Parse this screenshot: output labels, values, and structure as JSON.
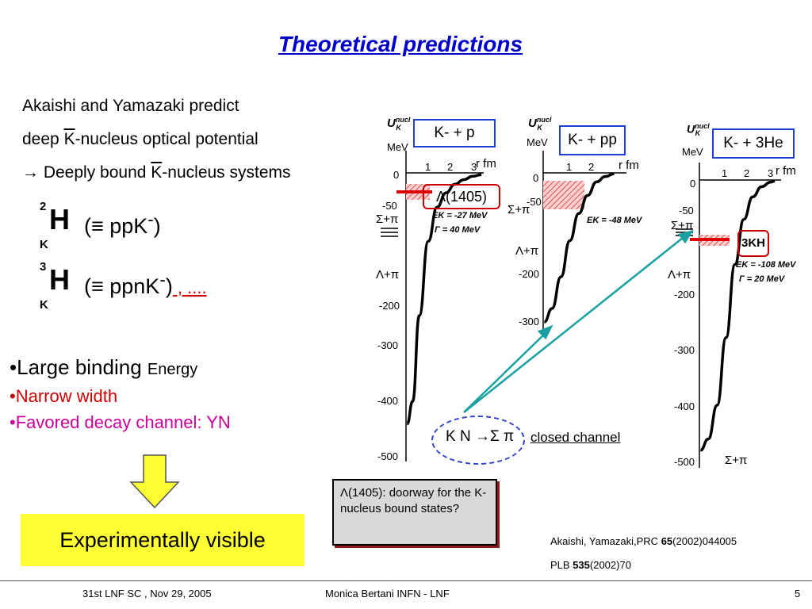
{
  "title": "Theoretical predictions",
  "intro": {
    "line1": "Akaishi and Yamazaki predict",
    "line2_pre": "deep ",
    "line2_bar": "K",
    "line2_post": "-nucleus optical potential",
    "line3_pre": "→ Deeply bound ",
    "line3_bar": "K",
    "line3_post": "-nucleus systems"
  },
  "formulas": [
    {
      "pre": "2",
      "sub": "K",
      "h": "H",
      "rest": "(≡ ppK",
      "minus": "-",
      "close": ")",
      "extra": ""
    },
    {
      "pre": "3",
      "sub": "K",
      "h": "H",
      "rest": "(≡ ppnK",
      "minus": "-",
      "close": ")",
      "extra": " , ...."
    }
  ],
  "bullets": {
    "b1_a": "•Large binding ",
    "b1_b": "Energy",
    "b2": "•Narrow width",
    "b3": "•Favored decay channel: YN"
  },
  "experimentally_visible": "Experimentally visible",
  "doorway_note": "Λ(1405): doorway for the K-nucleus bound states?",
  "decay": {
    "formula": "K N →Σ π",
    "closed": "closed channel"
  },
  "references": {
    "ref1_a": "Akaishi, Yamazaki,PRC ",
    "ref1_b": "65",
    "ref1_c": "(2002)044005",
    "ref2_a": "PLB ",
    "ref2_b": "535",
    "ref2_c": "(2002)70"
  },
  "footer": {
    "left": "31st LNF SC , Nov 29, 2005",
    "center": "Monica Bertani INFN - LNF",
    "page": "5"
  },
  "colors": {
    "title": "#0000cc",
    "red_text": "#cc0000",
    "magenta_text": "#cc0099",
    "box_border": "#1a3fd1",
    "yellow": "#ffff33",
    "teal_arrow": "#1aa0a0",
    "hatch": "#e05050"
  },
  "chart_data": [
    {
      "type": "line",
      "box_label": "K- + p",
      "ylabel_main": "U",
      "ylabel_sub": "K",
      "ylabel_sup": "nucl",
      "yunit": "MeV",
      "xlabel": "r  fm",
      "x_ticks": [
        "1",
        "2",
        "3"
      ],
      "y_ticks": [
        "0",
        "-50",
        "-200",
        "-300",
        "-400",
        "-500"
      ],
      "ylim": [
        -500,
        0
      ],
      "xlim": [
        0,
        3.5
      ],
      "potential_depth_MeV": -480,
      "x": [
        0.05,
        0.3,
        0.6,
        1.0,
        1.4,
        1.8,
        2.2,
        2.6,
        3.0,
        3.4
      ],
      "y": [
        -440,
        -400,
        -250,
        -120,
        -60,
        -35,
        -20,
        -12,
        -6,
        -3
      ],
      "level_label": "Λ(1405)",
      "E_K_MeV": -27,
      "Gamma_MeV": 40,
      "E_K_text": "EK = -27 MeV",
      "Gamma_text": "Γ = 40 MeV",
      "thresholds": [
        "Σ+π",
        "Λ+π"
      ]
    },
    {
      "type": "line",
      "box_label": "K- + pp",
      "ylabel_main": "U",
      "ylabel_sub": "K",
      "ylabel_sup": "nucl",
      "yunit": "MeV",
      "xlabel": "r  fm",
      "x_ticks": [
        "1",
        "2"
      ],
      "y_ticks": [
        "0",
        "-50",
        "-200",
        "-300"
      ],
      "ylim": [
        -350,
        0
      ],
      "xlim": [
        0,
        3.5
      ],
      "x": [
        0.05,
        0.4,
        0.8,
        1.2,
        1.6,
        2.0,
        2.4,
        2.8,
        3.2
      ],
      "y": [
        -330,
        -300,
        -230,
        -150,
        -90,
        -50,
        -20,
        -8,
        -2
      ],
      "E_K_MeV": -48,
      "E_K_text": "EK = -48 MeV",
      "thresholds": [
        "Σ+π",
        "Λ+π"
      ]
    },
    {
      "type": "line",
      "box_label": "K- + 3He",
      "ylabel_main": "U",
      "ylabel_sub": "K",
      "ylabel_sup": "nucl",
      "yunit": "MeV",
      "xlabel": "r  fm",
      "x_ticks": [
        "1",
        "2",
        "3"
      ],
      "y_ticks": [
        "0",
        "-50",
        "-200",
        "-300",
        "-400",
        "-500"
      ],
      "ylim": [
        -500,
        0
      ],
      "xlim": [
        0,
        3.5
      ],
      "x": [
        0.05,
        0.4,
        0.8,
        1.2,
        1.6,
        2.0,
        2.4,
        2.8,
        3.2,
        3.4
      ],
      "y": [
        -480,
        -460,
        -400,
        -280,
        -150,
        -70,
        -30,
        -12,
        -4,
        -2
      ],
      "level_label": "3KH",
      "E_K_MeV": -108,
      "Gamma_MeV": 20,
      "E_K_text": "EK = -108 MeV",
      "Gamma_text": "Γ = 20 MeV",
      "thresholds": [
        "Σ+π",
        "Λ+π",
        "Σ+π"
      ]
    }
  ]
}
